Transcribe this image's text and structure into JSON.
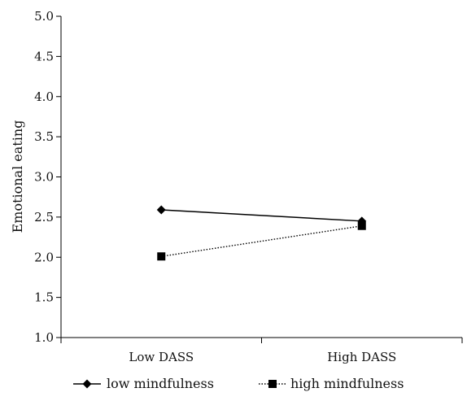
{
  "chart_data": {
    "type": "line",
    "categories": [
      "Low DASS",
      "High DASS"
    ],
    "series": [
      {
        "name": "low mindfulness",
        "values": [
          2.59,
          2.45
        ],
        "marker": "diamond",
        "line_style": "solid",
        "color": "#000000"
      },
      {
        "name": "high mindfulness",
        "values": [
          2.01,
          2.39
        ],
        "marker": "square",
        "line_style": "dotted",
        "color": "#000000"
      }
    ],
    "ylabel": "Emotional eating",
    "xlabel": "",
    "ylim": [
      1.0,
      5.0
    ],
    "yticks": [
      "1.0",
      "1.5",
      "2.0",
      "2.5",
      "3.0",
      "3.5",
      "4.0",
      "4.5",
      "5.0"
    ],
    "grid": false,
    "legend_position": "bottom"
  }
}
